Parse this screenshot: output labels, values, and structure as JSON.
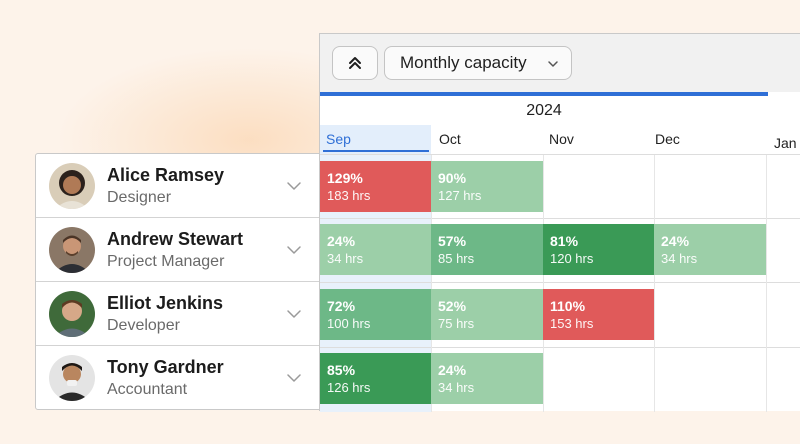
{
  "toolbar": {
    "collapse_icon": "chevrons-up-icon",
    "view_select": "Monthly capacity",
    "dropdown_icon": "chevron-down-icon"
  },
  "timeline": {
    "year": "2024",
    "months": [
      "Sep",
      "Oct",
      "Nov",
      "Dec",
      "Jan"
    ],
    "selected_month": "Sep"
  },
  "colors": {
    "over": "#e05a5a",
    "light": "#9ccfa8",
    "medium": "#6db887",
    "strong": "#3a9a56",
    "accent": "#2f6fd6"
  },
  "people": [
    {
      "name": "Alice Ramsey",
      "role": "Designer",
      "cells": [
        {
          "month": "Sep",
          "pct": "129%",
          "hrs": "183 hrs",
          "level": "over"
        },
        {
          "month": "Oct",
          "pct": "90%",
          "hrs": "127 hrs",
          "level": "light"
        }
      ]
    },
    {
      "name": "Andrew Stewart",
      "role": "Project Manager",
      "cells": [
        {
          "month": "Sep",
          "pct": "24%",
          "hrs": "34 hrs",
          "level": "light"
        },
        {
          "month": "Oct",
          "pct": "57%",
          "hrs": "85 hrs",
          "level": "medium"
        },
        {
          "month": "Nov",
          "pct": "81%",
          "hrs": "120 hrs",
          "level": "strong"
        },
        {
          "month": "Dec",
          "pct": "24%",
          "hrs": "34 hrs",
          "level": "light"
        }
      ]
    },
    {
      "name": "Elliot Jenkins",
      "role": "Developer",
      "cells": [
        {
          "month": "Sep",
          "pct": "72%",
          "hrs": "100 hrs",
          "level": "medium"
        },
        {
          "month": "Oct",
          "pct": "52%",
          "hrs": "75 hrs",
          "level": "light"
        },
        {
          "month": "Nov",
          "pct": "110%",
          "hrs": "153 hrs",
          "level": "over"
        }
      ]
    },
    {
      "name": "Tony Gardner",
      "role": "Accountant",
      "cells": [
        {
          "month": "Sep",
          "pct": "85%",
          "hrs": "126 hrs",
          "level": "strong"
        },
        {
          "month": "Oct",
          "pct": "24%",
          "hrs": "34 hrs",
          "level": "light"
        }
      ]
    }
  ]
}
